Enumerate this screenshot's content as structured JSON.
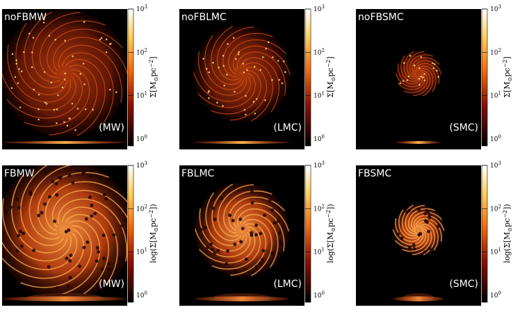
{
  "panels": [
    {
      "title": "noFBMW",
      "tag": "(MW)"
    },
    {
      "title": "noFBLMC",
      "tag": "(LMC)"
    },
    {
      "title": "noFBSMC",
      "tag": "(SMC)"
    },
    {
      "title": "FBMW",
      "tag": "(MW)"
    },
    {
      "title": "FBLMC",
      "tag": "(LMC)"
    },
    {
      "title": "FBSMC",
      "tag": "(SMC)"
    }
  ],
  "colorbar_ticks": [
    {
      "base": "10",
      "exponent": "0"
    },
    {
      "base": "10",
      "exponent": "1"
    },
    {
      "base": "10",
      "exponent": "2"
    },
    {
      "base": "10",
      "exponent": "3"
    }
  ],
  "colorbar_labels": {
    "top_row": {
      "prefix": "Σ[M",
      "sub": "⊙",
      "unit": "pc",
      "sup": "−2",
      "suffix": "]"
    },
    "bottom_row": {
      "prefix": "log(Σ[M",
      "sub": "⊙",
      "unit": "pc",
      "sup": "−2",
      "suffix": "])"
    }
  }
}
